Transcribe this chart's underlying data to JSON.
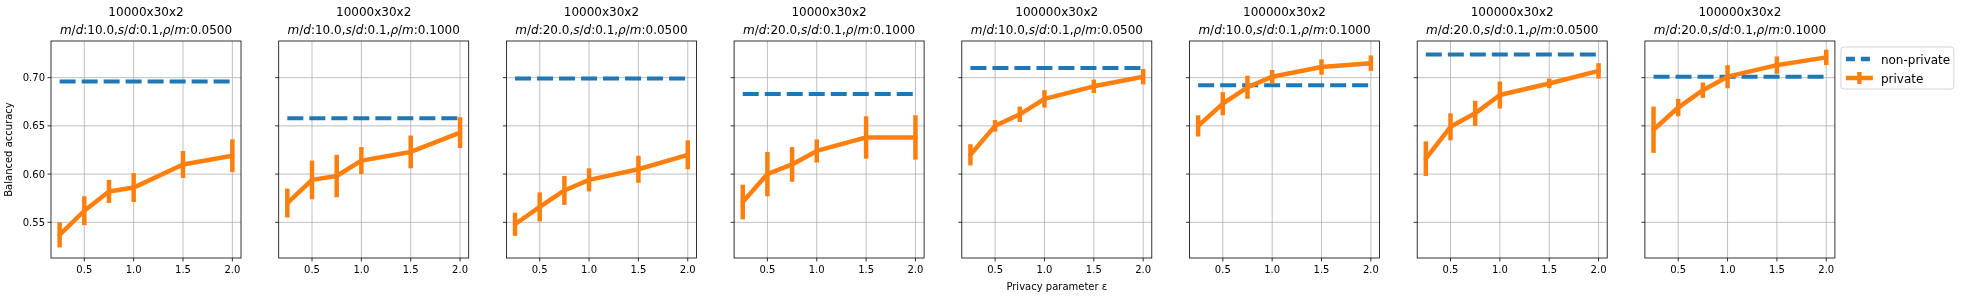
{
  "chart_data": [
    {
      "type": "line",
      "title": "10000x30x2",
      "subtitle": "m/d:10.0,s/d:0.1,ρ/m:0.0500",
      "ylabel": "Balanced accuracy",
      "xlim": [
        0.1625,
        2.0875
      ],
      "xticks": [
        {
          "value": 0.5,
          "label": "0.5"
        },
        {
          "value": 1,
          "label": "1.0"
        },
        {
          "value": 1.5,
          "label": "1.5"
        },
        {
          "value": 2,
          "label": "2.0"
        }
      ],
      "ylim": [
        0.513,
        0.738
      ],
      "yticks": [
        {
          "value": 0.55,
          "label": "0.55"
        },
        {
          "value": 0.6,
          "label": "0.60"
        },
        {
          "value": 0.65,
          "label": "0.65"
        },
        {
          "value": 0.7,
          "label": "0.70"
        }
      ],
      "grid": true,
      "series": [
        {
          "color": "#1f77b4",
          "line_style": "dashed",
          "x": [
            0.25,
            2.0
          ],
          "values": [
            0.696,
            0.696
          ]
        },
        {
          "color": "#ff7f0e",
          "line_style": "solid",
          "x": [
            0.25,
            0.5,
            0.75,
            1.0,
            1.5,
            2.0
          ],
          "values": [
            0.537,
            0.562,
            0.582,
            0.586,
            0.61,
            0.619
          ],
          "errors": [
            0.013,
            0.015,
            0.012,
            0.015,
            0.014,
            0.017
          ]
        }
      ]
    },
    {
      "type": "line",
      "title": "10000x30x2",
      "subtitle": "m/d:10.0,s/d:0.1,ρ/m:0.1000",
      "tick_labels": "x",
      "xlim": [
        0.1625,
        2.0875
      ],
      "xticks": [
        {
          "value": 0.5,
          "label": "0.5"
        },
        {
          "value": 1,
          "label": "1.0"
        },
        {
          "value": 1.5,
          "label": "1.5"
        },
        {
          "value": 2,
          "label": "2.0"
        }
      ],
      "ylim": [
        0.513,
        0.738
      ],
      "yticks": [
        {
          "value": 0.55,
          "label": null
        },
        {
          "value": 0.6,
          "label": null
        },
        {
          "value": 0.65,
          "label": null
        },
        {
          "value": 0.7,
          "label": null
        }
      ],
      "grid": true,
      "series": [
        {
          "color": "#1f77b4",
          "line_style": "dashed",
          "x": [
            0.25,
            2.0
          ],
          "values": [
            0.658,
            0.658
          ]
        },
        {
          "color": "#ff7f0e",
          "line_style": "solid",
          "x": [
            0.25,
            0.5,
            0.75,
            1.0,
            1.5,
            2.0
          ],
          "values": [
            0.57,
            0.594,
            0.598,
            0.614,
            0.623,
            0.643
          ],
          "errors": [
            0.015,
            0.02,
            0.022,
            0.014,
            0.017,
            0.016
          ]
        }
      ]
    },
    {
      "type": "line",
      "title": "10000x30x2",
      "subtitle": "m/d:20.0,s/d:0.1,ρ/m:0.0500",
      "tick_labels": "x",
      "xlim": [
        0.1625,
        2.0875
      ],
      "xticks": [
        {
          "value": 0.5,
          "label": "0.5"
        },
        {
          "value": 1,
          "label": "1.0"
        },
        {
          "value": 1.5,
          "label": "1.5"
        },
        {
          "value": 2,
          "label": "2.0"
        }
      ],
      "ylim": [
        0.513,
        0.738
      ],
      "yticks": [
        {
          "value": 0.55,
          "label": null
        },
        {
          "value": 0.6,
          "label": null
        },
        {
          "value": 0.65,
          "label": null
        },
        {
          "value": 0.7,
          "label": null
        }
      ],
      "grid": true,
      "series": [
        {
          "color": "#1f77b4",
          "line_style": "dashed",
          "x": [
            0.25,
            2.0
          ],
          "values": [
            0.699,
            0.699
          ]
        },
        {
          "color": "#ff7f0e",
          "line_style": "solid",
          "x": [
            0.25,
            0.5,
            0.75,
            1.0,
            1.5,
            2.0
          ],
          "values": [
            0.548,
            0.566,
            0.583,
            0.594,
            0.605,
            0.62
          ],
          "errors": [
            0.012,
            0.015,
            0.015,
            0.012,
            0.014,
            0.015
          ]
        }
      ]
    },
    {
      "type": "line",
      "title": "10000x30x2",
      "subtitle": "m/d:20.0,s/d:0.1,ρ/m:0.1000",
      "tick_labels": "x",
      "xlim": [
        0.1625,
        2.0875
      ],
      "xticks": [
        {
          "value": 0.5,
          "label": "0.5"
        },
        {
          "value": 1,
          "label": "1.0"
        },
        {
          "value": 1.5,
          "label": "1.5"
        },
        {
          "value": 2,
          "label": "2.0"
        }
      ],
      "ylim": [
        0.513,
        0.738
      ],
      "yticks": [
        {
          "value": 0.55,
          "label": null
        },
        {
          "value": 0.6,
          "label": null
        },
        {
          "value": 0.65,
          "label": null
        },
        {
          "value": 0.7,
          "label": null
        }
      ],
      "grid": true,
      "series": [
        {
          "color": "#1f77b4",
          "line_style": "dashed",
          "x": [
            0.25,
            2.0
          ],
          "values": [
            0.683,
            0.683
          ]
        },
        {
          "color": "#ff7f0e",
          "line_style": "solid",
          "x": [
            0.25,
            0.5,
            0.75,
            1.0,
            1.5,
            2.0
          ],
          "values": [
            0.571,
            0.6,
            0.61,
            0.624,
            0.638,
            0.638
          ],
          "errors": [
            0.018,
            0.023,
            0.018,
            0.012,
            0.022,
            0.023
          ]
        }
      ]
    },
    {
      "type": "line",
      "title": "100000x30x2",
      "subtitle": "m/d:10.0,s/d:0.1,ρ/m:0.0500",
      "xlabel": "Privacy parameter ε",
      "tick_labels": "x",
      "xlim": [
        0.1625,
        2.0875
      ],
      "xticks": [
        {
          "value": 0.5,
          "label": "0.5"
        },
        {
          "value": 1,
          "label": "1.0"
        },
        {
          "value": 1.5,
          "label": "1.5"
        },
        {
          "value": 2,
          "label": "2.0"
        }
      ],
      "ylim": [
        0.513,
        0.738
      ],
      "yticks": [
        {
          "value": 0.55,
          "label": null
        },
        {
          "value": 0.6,
          "label": null
        },
        {
          "value": 0.65,
          "label": null
        },
        {
          "value": 0.7,
          "label": null
        }
      ],
      "grid": true,
      "series": [
        {
          "color": "#1f77b4",
          "line_style": "dashed",
          "x": [
            0.25,
            2.0
          ],
          "values": [
            0.71,
            0.71
          ]
        },
        {
          "color": "#ff7f0e",
          "line_style": "solid",
          "x": [
            0.25,
            0.5,
            0.75,
            1.0,
            1.5,
            2.0
          ],
          "values": [
            0.62,
            0.65,
            0.662,
            0.678,
            0.691,
            0.701
          ],
          "errors": [
            0.011,
            0.006,
            0.008,
            0.009,
            0.007,
            0.008
          ]
        }
      ]
    },
    {
      "type": "line",
      "title": "100000x30x2",
      "subtitle": "m/d:10.0,s/d:0.1,ρ/m:0.1000",
      "tick_labels": "x",
      "xlim": [
        0.1625,
        2.0875
      ],
      "xticks": [
        {
          "value": 0.5,
          "label": "0.5"
        },
        {
          "value": 1,
          "label": "1.0"
        },
        {
          "value": 1.5,
          "label": "1.5"
        },
        {
          "value": 2,
          "label": "2.0"
        }
      ],
      "ylim": [
        0.513,
        0.738
      ],
      "yticks": [
        {
          "value": 0.55,
          "label": null
        },
        {
          "value": 0.6,
          "label": null
        },
        {
          "value": 0.65,
          "label": null
        },
        {
          "value": 0.7,
          "label": null
        }
      ],
      "grid": true,
      "series": [
        {
          "color": "#1f77b4",
          "line_style": "dashed",
          "x": [
            0.25,
            2.0
          ],
          "values": [
            0.692,
            0.692
          ]
        },
        {
          "color": "#ff7f0e",
          "line_style": "solid",
          "x": [
            0.25,
            0.5,
            0.75,
            1.0,
            1.5,
            2.0
          ],
          "values": [
            0.65,
            0.673,
            0.69,
            0.701,
            0.711,
            0.715
          ],
          "errors": [
            0.011,
            0.012,
            0.012,
            0.007,
            0.008,
            0.008
          ]
        }
      ]
    },
    {
      "type": "line",
      "title": "100000x30x2",
      "subtitle": "m/d:20.0,s/d:0.1,ρ/m:0.0500",
      "tick_labels": "x",
      "xlim": [
        0.1625,
        2.0875
      ],
      "xticks": [
        {
          "value": 0.5,
          "label": "0.5"
        },
        {
          "value": 1,
          "label": "1.0"
        },
        {
          "value": 1.5,
          "label": "1.5"
        },
        {
          "value": 2,
          "label": "2.0"
        }
      ],
      "ylim": [
        0.513,
        0.738
      ],
      "yticks": [
        {
          "value": 0.55,
          "label": null
        },
        {
          "value": 0.6,
          "label": null
        },
        {
          "value": 0.65,
          "label": null
        },
        {
          "value": 0.7,
          "label": null
        }
      ],
      "grid": true,
      "series": [
        {
          "color": "#1f77b4",
          "line_style": "dashed",
          "x": [
            0.25,
            2.0
          ],
          "values": [
            0.724,
            0.724
          ]
        },
        {
          "color": "#ff7f0e",
          "line_style": "solid",
          "x": [
            0.25,
            0.5,
            0.75,
            1.0,
            1.5,
            2.0
          ],
          "values": [
            0.616,
            0.649,
            0.663,
            0.682,
            0.694,
            0.707
          ],
          "errors": [
            0.018,
            0.014,
            0.013,
            0.014,
            0.005,
            0.008
          ]
        }
      ]
    },
    {
      "type": "line",
      "title": "100000x30x2",
      "subtitle": "m/d:20.0,s/d:0.1,ρ/m:0.1000",
      "tick_labels": "x",
      "legend": "top right",
      "xlim": [
        0.1625,
        2.0875
      ],
      "xticks": [
        {
          "value": 0.5,
          "label": "0.5"
        },
        {
          "value": 1,
          "label": "1.0"
        },
        {
          "value": 1.5,
          "label": "1.5"
        },
        {
          "value": 2,
          "label": "2.0"
        }
      ],
      "ylim": [
        0.513,
        0.738
      ],
      "yticks": [
        {
          "value": 0.55,
          "label": null
        },
        {
          "value": 0.6,
          "label": null
        },
        {
          "value": 0.65,
          "label": null
        },
        {
          "value": 0.7,
          "label": null
        }
      ],
      "grid": true,
      "series": [
        {
          "name": "non-private",
          "color": "#1f77b4",
          "line_style": "dashed",
          "x": [
            0.25,
            2.0
          ],
          "values": [
            0.701,
            0.701
          ]
        },
        {
          "name": "private",
          "color": "#ff7f0e",
          "line_style": "solid",
          "x": [
            0.25,
            0.5,
            0.75,
            1.0,
            1.5,
            2.0
          ],
          "values": [
            0.646,
            0.669,
            0.687,
            0.701,
            0.713,
            0.721
          ],
          "errors": [
            0.024,
            0.009,
            0.008,
            0.012,
            0.009,
            0.008
          ]
        }
      ]
    }
  ]
}
